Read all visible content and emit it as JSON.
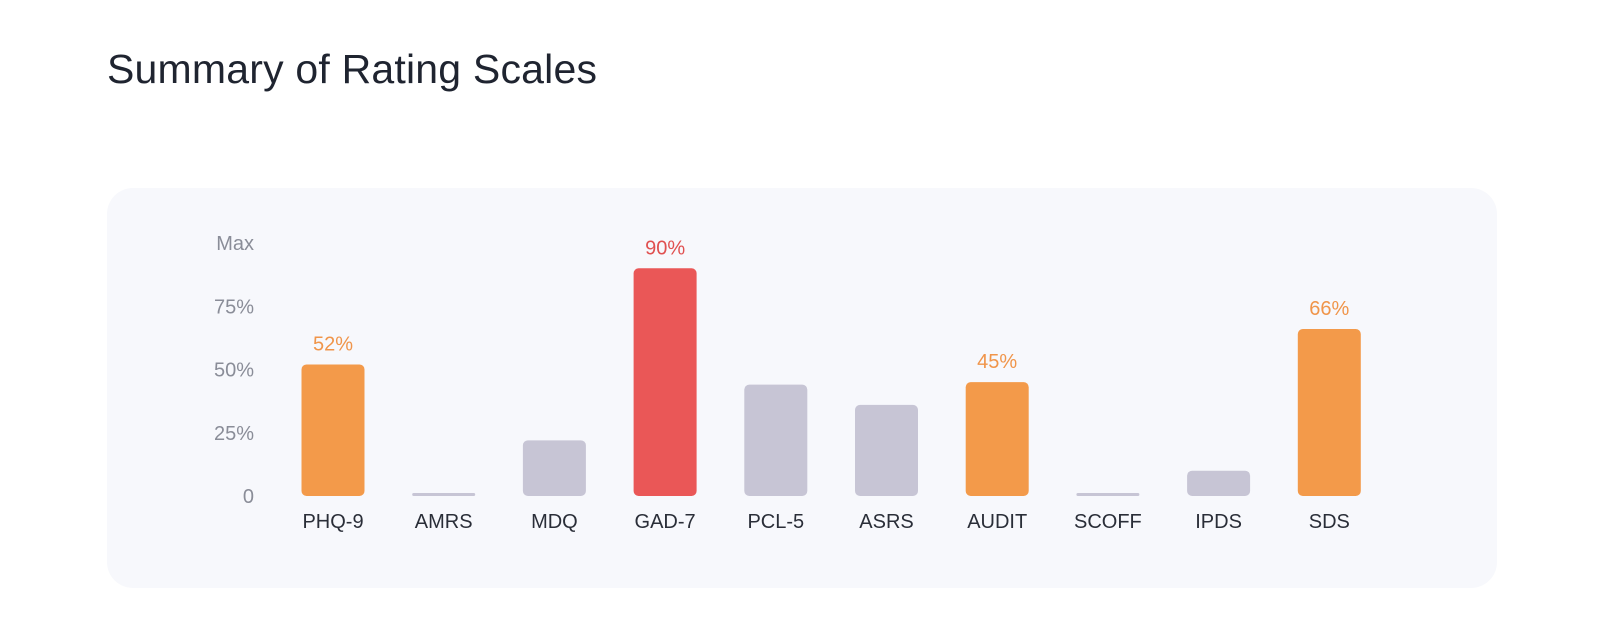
{
  "page": {
    "title": "Summary of Rating Scales"
  },
  "chart_data": {
    "type": "bar",
    "title": "Summary of Rating Scales",
    "xlabel": "",
    "ylabel": "",
    "ylim": [
      0,
      100
    ],
    "y_ticks": [
      {
        "value": 0,
        "label": "0"
      },
      {
        "value": 25,
        "label": "25%"
      },
      {
        "value": 50,
        "label": "50%"
      },
      {
        "value": 75,
        "label": "75%"
      },
      {
        "value": 100,
        "label": "Max"
      }
    ],
    "grid": false,
    "legend": "none",
    "categories": [
      "PHQ-9",
      "AMRS",
      "MDQ",
      "GAD-7",
      "PCL-5",
      "ASRS",
      "AUDIT",
      "SCOFF",
      "IPDS",
      "SDS"
    ],
    "values": [
      52,
      0,
      22,
      90,
      44,
      36,
      45,
      0,
      10,
      66
    ],
    "data_labels": [
      "52%",
      "",
      "",
      "90%",
      "",
      "",
      "45%",
      "",
      "",
      "66%"
    ],
    "severity": [
      "elevated",
      "none",
      "normal",
      "high",
      "normal",
      "normal",
      "elevated",
      "none",
      "normal",
      "elevated"
    ],
    "colors": {
      "high": "#ea5757",
      "elevated": "#f39a4a",
      "normal": "#c7c5d5",
      "none": "#c7c5d5",
      "label_high": "#e05050",
      "label_elevated": "#f0954a"
    }
  }
}
